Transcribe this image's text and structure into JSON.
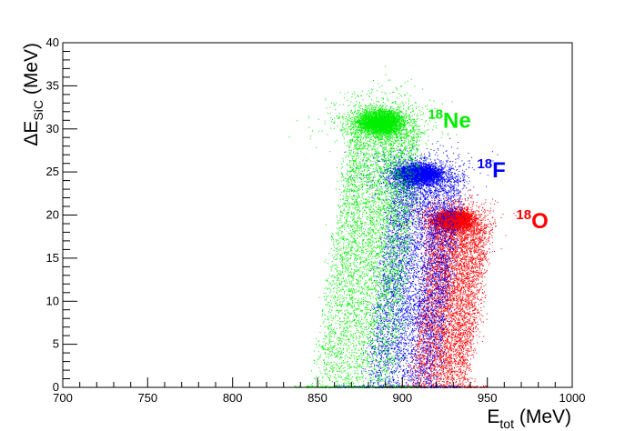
{
  "chart_data": {
    "type": "scatter",
    "title": "",
    "xlabel": {
      "main": "E",
      "sub": "tot",
      "unit": " (MeV)"
    },
    "ylabel": {
      "main": "ΔE",
      "sub": "SiC",
      "unit": " (MeV)"
    },
    "xlim": [
      700,
      1000
    ],
    "ylim": [
      0,
      40
    ],
    "x_ticks": [
      700,
      750,
      800,
      850,
      900,
      950,
      1000
    ],
    "y_ticks": [
      0,
      5,
      10,
      15,
      20,
      25,
      30,
      35,
      40
    ],
    "x_tick_labels": [
      "700",
      "750",
      "800",
      "850",
      "900",
      "950",
      "1000"
    ],
    "y_tick_labels": [
      "0",
      "5",
      "10",
      "15",
      "20",
      "25",
      "30",
      "35",
      "40"
    ],
    "grid": false,
    "legend": "none",
    "series": [
      {
        "mass": "18",
        "element": "O",
        "color": "#ff0000",
        "blob_center": [
          930,
          19.5
        ],
        "blob_spread": [
          10,
          0.9
        ],
        "tail_x_range": [
          888,
          950
        ],
        "tail_x_at_zero": [
          905,
          938
        ],
        "tail_x_at_top": [
          918,
          950
        ],
        "tail_top_y": 19,
        "label_position": [
          967,
          19.3
        ]
      },
      {
        "mass": "18",
        "element": "F",
        "color": "#0000ff",
        "blob_center": [
          909,
          24.8
        ],
        "blob_spread": [
          12,
          1.0
        ],
        "tail_x_range": [
          860,
          935
        ],
        "tail_x_at_zero": [
          878,
          920
        ],
        "tail_x_at_top": [
          895,
          935
        ],
        "tail_top_y": 24.5,
        "label_position": [
          944,
          25.2
        ]
      },
      {
        "mass": "18",
        "element": "Ne",
        "color": "#00ee00",
        "blob_center": [
          887,
          30.8
        ],
        "blob_spread": [
          12,
          1.2
        ],
        "tail_x_range": [
          835,
          910
        ],
        "tail_x_at_zero": [
          848,
          895
        ],
        "tail_x_at_top": [
          870,
          910
        ],
        "tail_top_y": 30,
        "label_position": [
          915,
          31
        ]
      }
    ]
  }
}
